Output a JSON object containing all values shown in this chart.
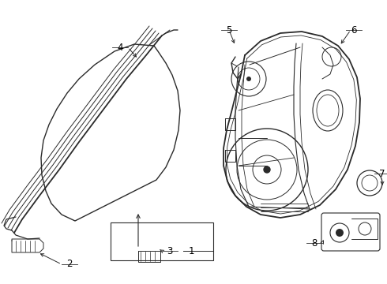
{
  "bg_color": "#ffffff",
  "line_color": "#2a2a2a",
  "label_color": "#000000",
  "fig_w": 4.9,
  "fig_h": 3.6,
  "dpi": 100,
  "xlim": [
    0,
    490
  ],
  "ylim": [
    0,
    360
  ]
}
